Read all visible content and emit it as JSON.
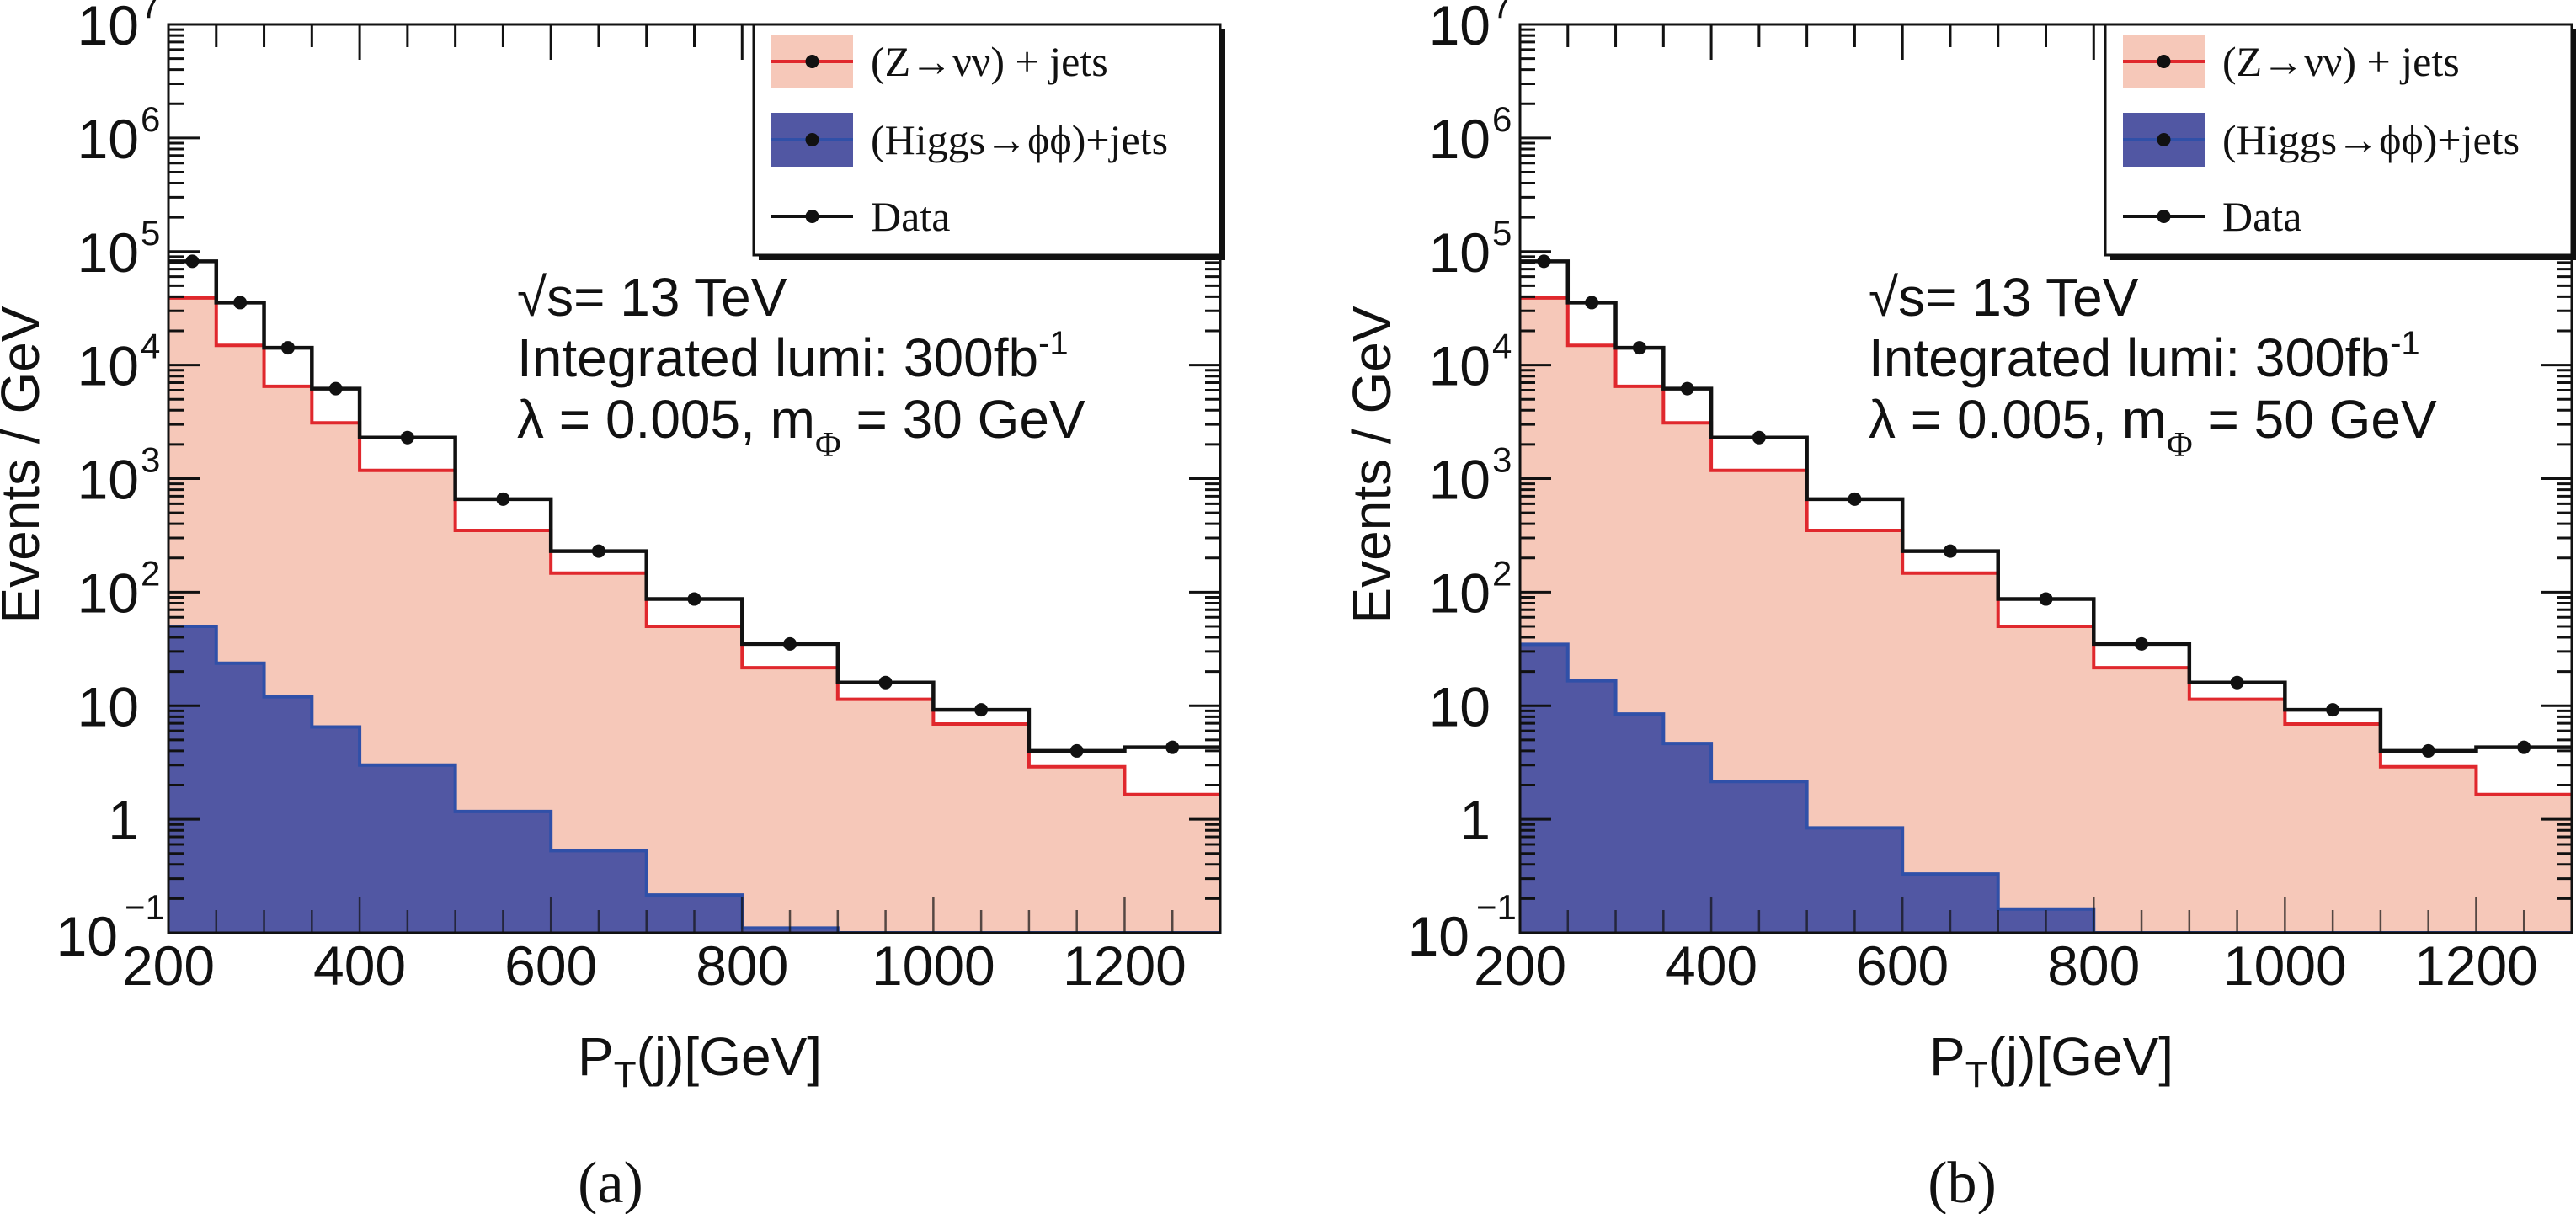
{
  "figure": {
    "panels": [
      "a",
      "b"
    ]
  },
  "chart_data": [
    {
      "type": "histogram",
      "panel_caption": "(a)",
      "title": "",
      "xlabel": "P_T(j)[GeV]",
      "xlabel_parts": {
        "main": "P",
        "sub": "T",
        "rest": "(j)[GeV]"
      },
      "ylabel": "Events / GeV",
      "xlim": [
        200,
        1300
      ],
      "ylim": [
        0.1,
        10000000
      ],
      "yscale": "log",
      "x_ticks": [
        200,
        400,
        600,
        800,
        1000,
        1200
      ],
      "x_tick_labels": [
        "200",
        "400",
        "600",
        "800",
        "1000",
        "1200"
      ],
      "y_ticks": [
        {
          "value": 10000000,
          "base": "10",
          "exp": "7"
        },
        {
          "value": 1000000,
          "base": "10",
          "exp": "6"
        },
        {
          "value": 100000,
          "base": "10",
          "exp": "5"
        },
        {
          "value": 10000,
          "base": "10",
          "exp": "4"
        },
        {
          "value": 1000,
          "base": "10",
          "exp": "3"
        },
        {
          "value": 100,
          "base": "10",
          "exp": "2"
        },
        {
          "value": 10,
          "base": "10",
          "exp": ""
        },
        {
          "value": 1,
          "base": "1",
          "exp": ""
        },
        {
          "value": 0.1,
          "base": "10",
          "exp": "−1"
        }
      ],
      "grid": false,
      "legend_position": "top-right",
      "bin_edges": [
        200,
        250,
        300,
        350,
        400,
        500,
        600,
        700,
        800,
        900,
        1000,
        1100,
        1200,
        1300
      ],
      "series": [
        {
          "name": "(Z→νν) + jets",
          "style": "filled-histogram",
          "fill": "#f6c8b9",
          "line": "#e0282d",
          "values": [
            39000,
            14900,
            6500,
            3100,
            1180,
            350,
            147,
            50,
            21.6,
            11.4,
            6.9,
            2.9,
            1.65
          ]
        },
        {
          "name": "(Higgs→ϕϕ)+jets",
          "style": "filled-histogram",
          "fill": "#5157a3",
          "line": "#3050a8",
          "values": [
            50,
            23.7,
            12.0,
            6.5,
            3.0,
            1.17,
            0.53,
            0.215,
            0.11,
            null,
            null,
            null,
            null
          ]
        },
        {
          "name": "Data",
          "style": "line-histogram-with-markers",
          "line": "#111111",
          "values": [
            82000,
            35500,
            14200,
            6200,
            2300,
            660,
            230,
            87,
            35,
            16,
            9.2,
            4.0,
            4.3
          ]
        }
      ],
      "annotations": {
        "energy": {
          "prefix": "√",
          "var": "s",
          "text": "= 13 TeV"
        },
        "lumi": {
          "text": "Integrated lumi: 300fb",
          "sup": "-1"
        },
        "params": {
          "lambda": "λ = 0.005, m",
          "sub": "Φ",
          "rest": " = 30 GeV"
        }
      }
    },
    {
      "type": "histogram",
      "panel_caption": "(b)",
      "title": "",
      "xlabel": "P_T(j)[GeV]",
      "xlabel_parts": {
        "main": "P",
        "sub": "T",
        "rest": "(j)[GeV]"
      },
      "ylabel": "Events / GeV",
      "xlim": [
        200,
        1300
      ],
      "ylim": [
        0.1,
        10000000
      ],
      "yscale": "log",
      "x_ticks": [
        200,
        400,
        600,
        800,
        1000,
        1200
      ],
      "x_tick_labels": [
        "200",
        "400",
        "600",
        "800",
        "1000",
        "1200"
      ],
      "y_ticks": [
        {
          "value": 10000000,
          "base": "10",
          "exp": "7"
        },
        {
          "value": 1000000,
          "base": "10",
          "exp": "6"
        },
        {
          "value": 100000,
          "base": "10",
          "exp": "5"
        },
        {
          "value": 10000,
          "base": "10",
          "exp": "4"
        },
        {
          "value": 1000,
          "base": "10",
          "exp": "3"
        },
        {
          "value": 100,
          "base": "10",
          "exp": "2"
        },
        {
          "value": 10,
          "base": "10",
          "exp": ""
        },
        {
          "value": 1,
          "base": "1",
          "exp": ""
        },
        {
          "value": 0.1,
          "base": "10",
          "exp": "−1"
        }
      ],
      "grid": false,
      "legend_position": "top-right",
      "bin_edges": [
        200,
        250,
        300,
        350,
        400,
        500,
        600,
        700,
        800,
        900,
        1000,
        1100,
        1200,
        1300
      ],
      "series": [
        {
          "name": "(Z→νν) + jets",
          "style": "filled-histogram",
          "fill": "#f6c8b9",
          "line": "#e0282d",
          "values": [
            39000,
            14900,
            6500,
            3100,
            1180,
            350,
            147,
            50,
            21.6,
            11.4,
            6.9,
            2.9,
            1.65
          ]
        },
        {
          "name": "(Higgs→ϕϕ)+jets",
          "style": "filled-histogram",
          "fill": "#5157a3",
          "line": "#3050a8",
          "values": [
            34.7,
            16.6,
            8.45,
            4.65,
            2.15,
            0.84,
            0.33,
            0.162,
            null,
            null,
            null,
            null,
            null
          ]
        },
        {
          "name": "Data",
          "style": "line-histogram-with-markers",
          "line": "#111111",
          "values": [
            82000,
            35500,
            14200,
            6200,
            2300,
            660,
            230,
            87,
            35,
            16,
            9.2,
            4.0,
            4.3
          ]
        }
      ],
      "annotations": {
        "energy": {
          "prefix": "√",
          "var": "s",
          "text": "= 13 TeV"
        },
        "lumi": {
          "text": "Integrated lumi: 300fb",
          "sup": "-1"
        },
        "params": {
          "lambda": "λ = 0.005, m",
          "sub": "Φ",
          "rest": " = 50 GeV"
        }
      }
    }
  ]
}
